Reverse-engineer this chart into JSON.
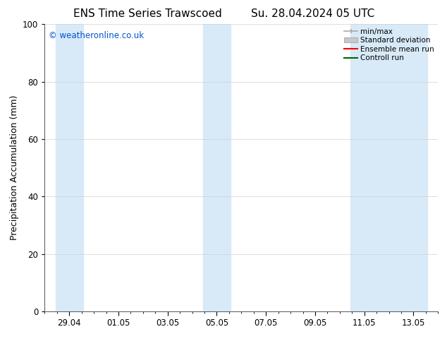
{
  "title_left": "ENS Time Series Trawscoed",
  "title_right": "Su. 28.04.2024 05 UTC",
  "ylabel": "Precipitation Accumulation (mm)",
  "watermark": "© weatheronline.co.uk",
  "watermark_color": "#0055cc",
  "ylim": [
    0,
    100
  ],
  "yticks": [
    0,
    20,
    40,
    60,
    80,
    100
  ],
  "x_tick_labels": [
    "29.04",
    "01.05",
    "03.05",
    "05.05",
    "07.05",
    "09.05",
    "11.05",
    "13.05"
  ],
  "background_color": "#ffffff",
  "plot_bg_color": "#ffffff",
  "shaded_color": "#d8eaf8",
  "legend_items": [
    {
      "label": "min/max",
      "color": "#aaaaaa",
      "lw": 1.2
    },
    {
      "label": "Standard deviation",
      "color": "#c8c8c8",
      "lw": 8
    },
    {
      "label": "Ensemble mean run",
      "color": "#ff0000",
      "lw": 1.5
    },
    {
      "label": "Controll run",
      "color": "#006400",
      "lw": 1.5
    }
  ],
  "title_fontsize": 11,
  "axis_fontsize": 9,
  "tick_fontsize": 8.5,
  "legend_fontsize": 7.5
}
